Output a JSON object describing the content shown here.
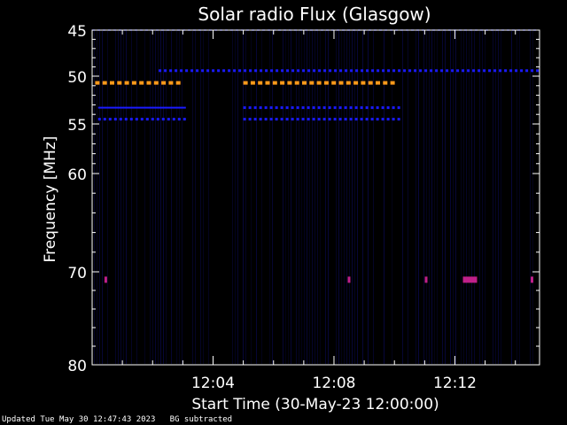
{
  "chart_data": {
    "type": "heatmap",
    "title": "Solar radio Flux (Glasgow)",
    "xlabel": "Start Time (30-May-23 12:00:00)",
    "ylabel": "Frequency [MHz]",
    "xlim_minutes": [
      0,
      14.8
    ],
    "ylim": [
      45,
      80
    ],
    "x_ticks": [
      {
        "minute": 4,
        "label": "12:04"
      },
      {
        "minute": 8,
        "label": "12:08"
      },
      {
        "minute": 12,
        "label": "12:12"
      }
    ],
    "y_ticks": [
      45,
      50,
      55,
      60,
      70,
      80
    ],
    "colors": {
      "background": "#000000",
      "axes": "#ffffff",
      "low": "#0a0a55",
      "medium": "#1a1aff",
      "high": "#ff9a1a",
      "spike": "#c0208a"
    },
    "bands": [
      {
        "freq": 45.0,
        "intensity": "low",
        "start": 0.0,
        "end": 14.8,
        "dashed": true
      },
      {
        "freq": 49.4,
        "intensity": "medium",
        "start": 2.2,
        "end": 14.8,
        "dashed": true
      },
      {
        "freq": 50.7,
        "intensity": "high",
        "start": 0.1,
        "end": 3.1,
        "dashed": true
      },
      {
        "freq": 50.7,
        "intensity": "high",
        "start": 5.0,
        "end": 10.2,
        "dashed": true
      },
      {
        "freq": 53.3,
        "intensity": "medium",
        "start": 0.2,
        "end": 3.1,
        "dashed": false
      },
      {
        "freq": 53.3,
        "intensity": "medium",
        "start": 5.0,
        "end": 10.2,
        "dashed": true
      },
      {
        "freq": 54.5,
        "intensity": "medium",
        "start": 0.2,
        "end": 3.1,
        "dashed": true
      },
      {
        "freq": 54.5,
        "intensity": "medium",
        "start": 5.0,
        "end": 10.2,
        "dashed": true
      }
    ],
    "spikes": [
      {
        "minute": 0.45,
        "freq": 70.8
      },
      {
        "minute": 8.5,
        "freq": 70.8
      },
      {
        "minute": 11.05,
        "freq": 70.8
      },
      {
        "minute": 12.5,
        "freq": 70.8
      },
      {
        "minute": 14.55,
        "freq": 70.8
      }
    ]
  },
  "footer": {
    "updated": "Updated Tue May 30 12:47:43 2023",
    "note": "BG subtracted"
  }
}
